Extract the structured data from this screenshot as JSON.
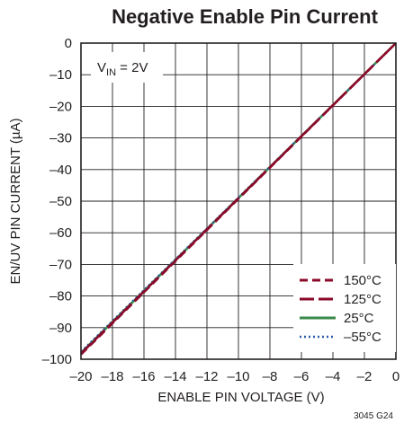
{
  "chart_data": {
    "type": "line",
    "title": "Negative Enable Pin Current",
    "xlabel": "ENABLE PIN VOLTAGE (V)",
    "ylabel": "EN/UV PIN CURRENT (µA)",
    "xlim": [
      -20,
      0
    ],
    "ylim": [
      -100,
      0
    ],
    "xticks": [
      -20,
      -18,
      -16,
      -14,
      -12,
      -10,
      -8,
      -6,
      -4,
      -2,
      0
    ],
    "yticks": [
      0,
      -10,
      -20,
      -30,
      -40,
      -50,
      -60,
      -70,
      -80,
      -90,
      -100
    ],
    "xtick_labels": [
      "–20",
      "–18",
      "–16",
      "–14",
      "–12",
      "–10",
      "–8",
      "–6",
      "–4",
      "–2",
      "0"
    ],
    "ytick_labels": [
      "0",
      "–10",
      "–20",
      "–30",
      "–40",
      "–50",
      "–60",
      "–70",
      "–80",
      "–90",
      "–100"
    ],
    "grid": true,
    "legend_position": "bottom-right",
    "annotation": {
      "main": "V",
      "sub": "IN",
      "rest": " = 2V"
    },
    "figure_id": "3045 G24",
    "series": [
      {
        "name": "150°C",
        "color": "#8b0a2a",
        "style": "dashed",
        "x": [
          -20,
          0
        ],
        "y": [
          -98.5,
          0
        ]
      },
      {
        "name": "125°C",
        "color": "#8b0a2a",
        "style": "longdash",
        "x": [
          -20,
          0
        ],
        "y": [
          -98.2,
          0
        ]
      },
      {
        "name": "25°C",
        "color": "#3a8a4a",
        "style": "solid",
        "x": [
          -20,
          0
        ],
        "y": [
          -98.0,
          0
        ]
      },
      {
        "name": "–55°C",
        "color": "#2a5aa8",
        "style": "dotted",
        "x": [
          -20,
          0
        ],
        "y": [
          -97.6,
          0
        ]
      }
    ]
  }
}
